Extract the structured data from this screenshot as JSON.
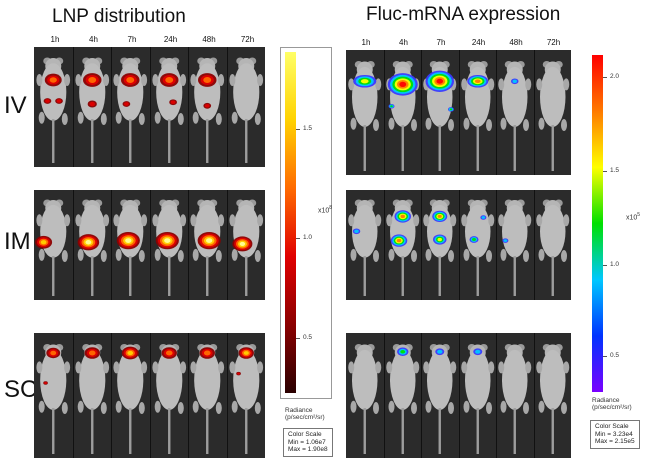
{
  "left_panel": {
    "title": "LNP distribution",
    "timepoints": [
      "1h",
      "4h",
      "7h",
      "24h",
      "48h",
      "72h"
    ],
    "routes": [
      "IV",
      "IM",
      "SC"
    ],
    "colorbar": {
      "ticks": [
        "1.5",
        "1.0",
        "0.5"
      ],
      "unit": "x10",
      "unit_exp": "8",
      "radiance_line1": "Radiance",
      "radiance_line2": "(p/sec/cm²/sr)",
      "scale_title": "Color Scale",
      "scale_min": "Min = 1.06e7",
      "scale_max": "Max = 1.90e8",
      "gradient": [
        "#2a0000",
        "#8b0000",
        "#e00000",
        "#ff6a00",
        "#ffd200",
        "#ffff66"
      ]
    }
  },
  "right_panel": {
    "title": "Fluc-mRNA expression",
    "timepoints": [
      "1h",
      "4h",
      "7h",
      "24h",
      "48h",
      "72h"
    ],
    "colorbar": {
      "ticks": [
        "2.0",
        "1.5",
        "1.0",
        "0.5"
      ],
      "unit": "x10",
      "unit_exp": "5",
      "radiance_line1": "Radiance",
      "radiance_line2": "(p/sec/cm²/sr)",
      "scale_title": "Color Scale",
      "scale_min": "Min = 3.23e4",
      "scale_max": "Max = 2.15e5",
      "gradient": [
        "#7a00ff",
        "#0033ff",
        "#00c8ff",
        "#00e000",
        "#ffff00",
        "#ff7a00",
        "#ff0000"
      ]
    }
  }
}
